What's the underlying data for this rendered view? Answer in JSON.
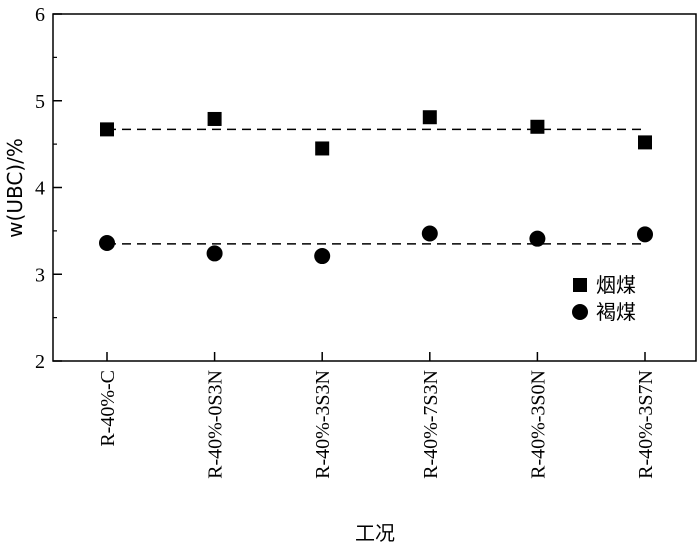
{
  "chart_data": {
    "type": "scatter",
    "title": "",
    "xlabel": "工况",
    "ylabel": "w(UBC)/%",
    "ylim": [
      2,
      6
    ],
    "yticks": [
      "2",
      "3",
      "4",
      "5",
      "6"
    ],
    "grid": false,
    "legend_position": "right",
    "categories": [
      "R-40%-C",
      "R-40%-0S3N",
      "R-40%-3S3N",
      "R-40%-7S3N",
      "R-40%-3S0N",
      "R-40%-3S7N"
    ],
    "series": [
      {
        "name": "烟煤",
        "marker": "square",
        "values": [
          4.67,
          4.79,
          4.45,
          4.81,
          4.7,
          4.52
        ],
        "mean_line": 4.67
      },
      {
        "name": "褐煤",
        "marker": "circle",
        "values": [
          3.36,
          3.24,
          3.21,
          3.47,
          3.41,
          3.46
        ],
        "mean_line": 3.35
      }
    ]
  }
}
